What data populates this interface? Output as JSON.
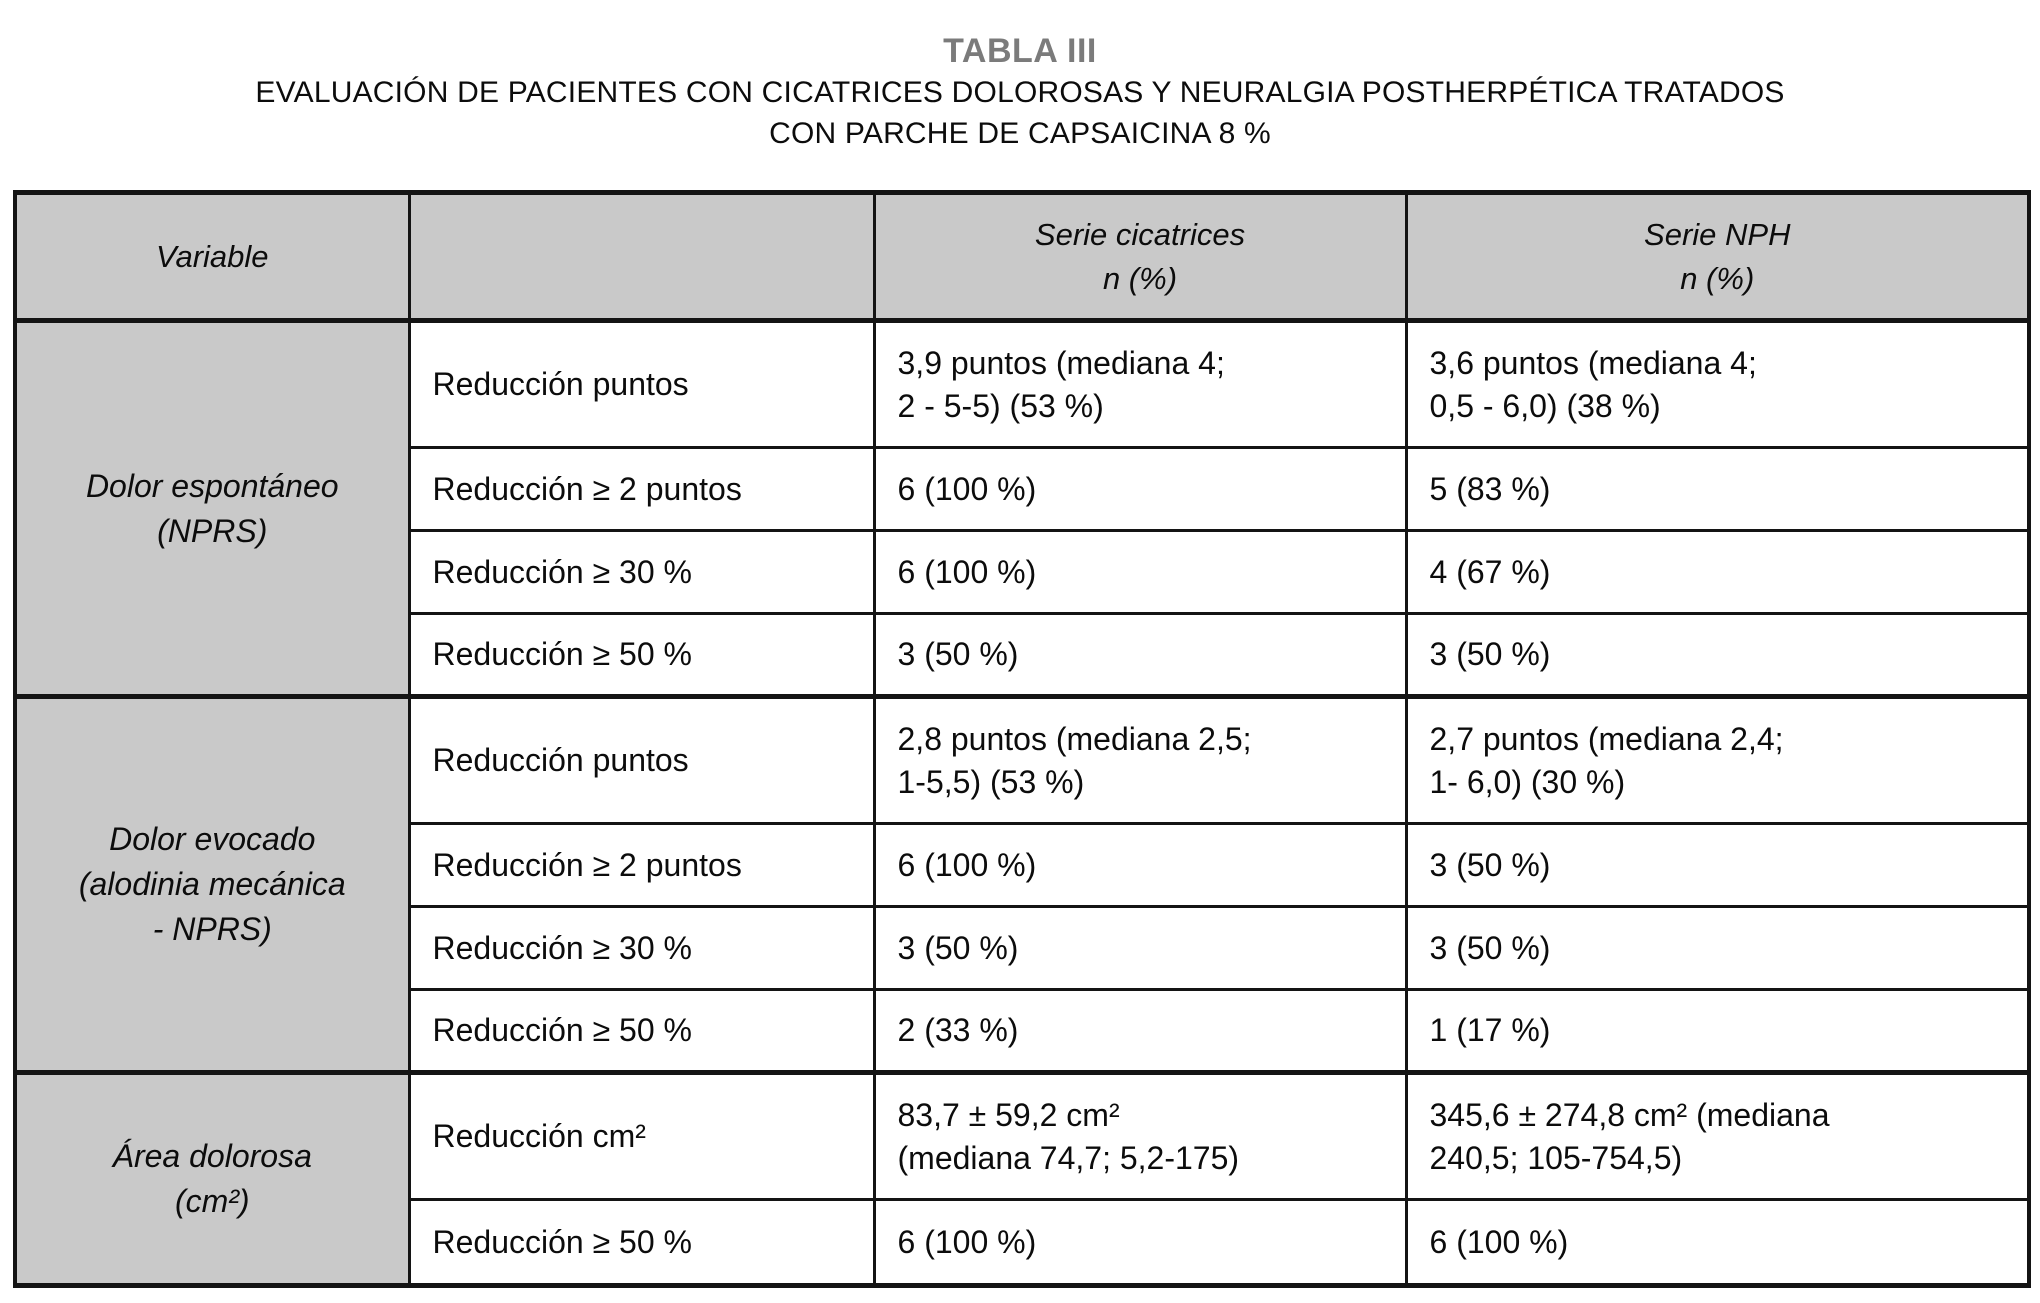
{
  "title": "TABLA III",
  "subtitle": "EVALUACIÓN DE PACIENTES CON CICATRICES DOLOROSAS Y NEURALGIA POSTHERPÉTICA TRATADOS\nCON PARCHE DE CAPSAICINA 8 %",
  "colors": {
    "header_fill": "#c9c9c9",
    "border": "#141414",
    "title_gray": "#7b7b7b"
  },
  "table": {
    "headers": {
      "variable": "Variable",
      "measure": "",
      "serie_cicatrices": "Serie cicatrices\nn (%)",
      "serie_nph": "Serie NPH\nn (%)"
    },
    "sections": [
      {
        "variable": "Dolor espontáneo\n(NPRS)",
        "rows": [
          {
            "measure": "Reducción puntos",
            "cicatrices": "3,9 puntos (mediana 4;\n2 - 5-5) (53 %)",
            "nph": "3,6 puntos (mediana 4;\n0,5 - 6,0) (38 %)"
          },
          {
            "measure": "Reducción ≥ 2 puntos",
            "cicatrices": "6 (100 %)",
            "nph": "5 (83 %)"
          },
          {
            "measure": "Reducción ≥ 30 %",
            "cicatrices": "6 (100 %)",
            "nph": "4 (67 %)"
          },
          {
            "measure": "Reducción ≥ 50 %",
            "cicatrices": "3 (50 %)",
            "nph": "3 (50 %)"
          }
        ]
      },
      {
        "variable": "Dolor evocado\n(alodinia mecánica\n- NPRS)",
        "rows": [
          {
            "measure": "Reducción puntos",
            "cicatrices": "2,8 puntos (mediana 2,5;\n1-5,5) (53 %)",
            "nph": "2,7 puntos (mediana 2,4;\n1- 6,0) (30 %)"
          },
          {
            "measure": "Reducción ≥ 2 puntos",
            "cicatrices": "6 (100 %)",
            "nph": "3 (50 %)"
          },
          {
            "measure": "Reducción ≥ 30 %",
            "cicatrices": "3 (50 %)",
            "nph": "3 (50 %)"
          },
          {
            "measure": "Reducción ≥ 50 %",
            "cicatrices": "2 (33 %)",
            "nph": "1 (17 %)"
          }
        ]
      },
      {
        "variable": "Área dolorosa\n(cm²)",
        "rows": [
          {
            "measure": "Reducción cm²",
            "cicatrices": "83,7 ± 59,2 cm²\n(mediana 74,7; 5,2-175)",
            "nph": "345,6 ± 274,8 cm² (mediana\n240,5; 105-754,5)"
          },
          {
            "measure": "Reducción ≥ 50 %",
            "cicatrices": "6 (100 %)",
            "nph": "6 (100 %)"
          }
        ]
      }
    ]
  }
}
